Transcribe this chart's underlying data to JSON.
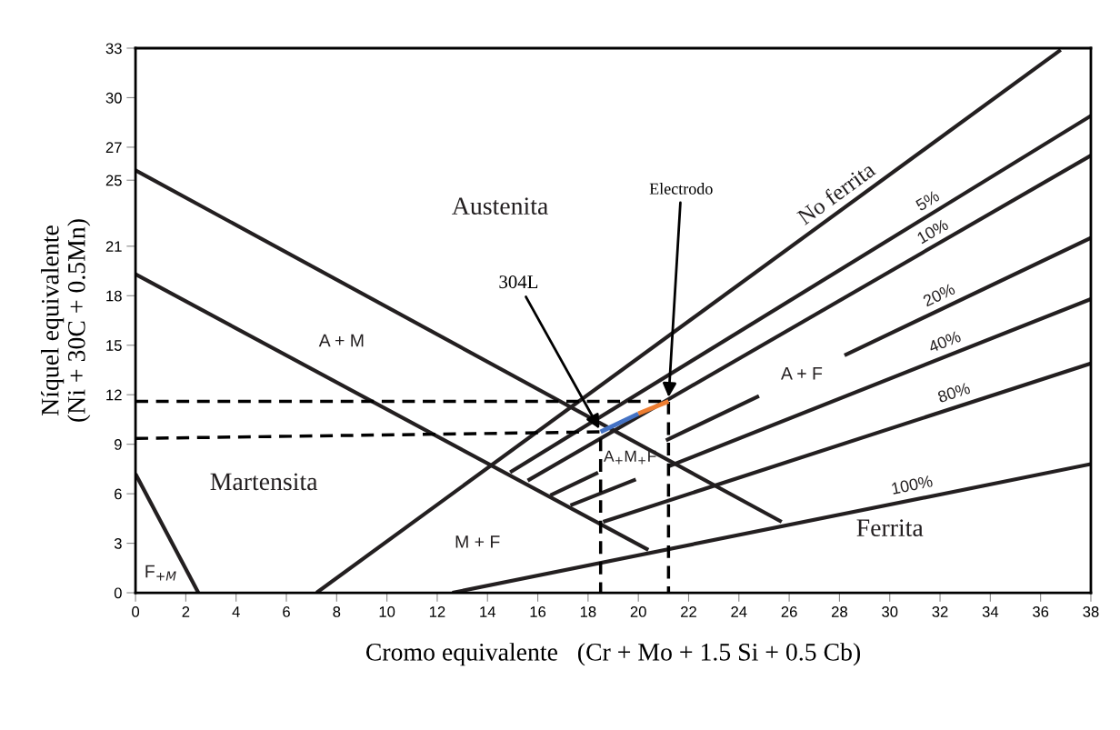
{
  "chart_data": {
    "type": "line",
    "xlabel": "Cromo equivalente   (Cr + Mo + 1.5 Si + 0.5 Cb)",
    "ylabel": "Níquel equivalente\n(Ni + 30C + 0.5Mn)",
    "xlim": [
      0,
      38
    ],
    "ylim": [
      0,
      33
    ],
    "xticks": [
      0,
      2,
      4,
      6,
      8,
      10,
      12,
      14,
      16,
      18,
      20,
      22,
      24,
      26,
      28,
      30,
      32,
      34,
      36,
      38
    ],
    "yticks": [
      0,
      3,
      6,
      9,
      12,
      15,
      18,
      21,
      25,
      27,
      30,
      33
    ],
    "grid": false,
    "legend": false,
    "marker": "none",
    "series": [
      {
        "color": "#231f20",
        "x": [
          0,
          2.5
        ],
        "values": [
          7.2,
          0
        ]
      },
      {
        "color": "#231f20",
        "x": [
          0,
          20.4
        ],
        "values": [
          19.3,
          2.6
        ]
      },
      {
        "color": "#231f20",
        "x": [
          0,
          25.7
        ],
        "values": [
          25.6,
          4.3
        ]
      },
      {
        "name": "No ferrita",
        "color": "#231f20",
        "x": [
          7.2,
          36.8
        ],
        "values": [
          0,
          32.9
        ]
      },
      {
        "name": "5%",
        "color": "#231f20",
        "x": [
          14.9,
          38
        ],
        "values": [
          7.3,
          28.9
        ]
      },
      {
        "name": "10%",
        "color": "#231f20",
        "x": [
          15.6,
          38
        ],
        "values": [
          6.8,
          26.5
        ]
      },
      {
        "name": "20%",
        "color": "#231f20",
        "x": [
          16.5,
          18.4,
          19.7,
          21.1,
          24.8,
          26.5,
          28.2,
          38
        ],
        "values": [
          5.9,
          7.28,
          null,
          9.24,
          11.92,
          null,
          14.39,
          21.5
        ]
      },
      {
        "name": "40%",
        "color": "#231f20",
        "x": [
          17.3,
          19.9,
          20.5,
          21.2,
          38
        ],
        "values": [
          5.3,
          6.87,
          null,
          7.66,
          17.8
        ]
      },
      {
        "name": "80%",
        "color": "#231f20",
        "x": [
          18.6,
          38
        ],
        "values": [
          4.3,
          13.9
        ]
      },
      {
        "name": "100%",
        "color": "#231f20",
        "x": [
          12.6,
          38
        ],
        "values": [
          0,
          7.8
        ]
      },
      {
        "color": "#000000",
        "line_style": "dashed",
        "x": [
          0,
          21.2,
          21.2
        ],
        "values": [
          11.6,
          11.6,
          0
        ]
      },
      {
        "color": "#000000",
        "line_style": "dashed",
        "x": [
          0,
          18.5,
          18.5
        ],
        "values": [
          9.35,
          9.75,
          0
        ]
      },
      {
        "color": "#4472c4",
        "x": [
          18.5,
          20.0
        ],
        "values": [
          9.75,
          10.85
        ]
      },
      {
        "color": "#ed7d31",
        "x": [
          20.0,
          21.2
        ],
        "values": [
          10.85,
          11.6
        ]
      }
    ],
    "annotations": [
      {
        "text": "304L",
        "x": 18.5,
        "y": 9.8
      },
      {
        "text": "Electrodo",
        "x": 21.2,
        "y": 11.7
      },
      "Austenita",
      "A + M",
      "Martensita",
      "M + F",
      "F$_{+M}$",
      "A$_{+}$M$_{+}$F",
      "A + F",
      "Ferrita"
    ]
  }
}
